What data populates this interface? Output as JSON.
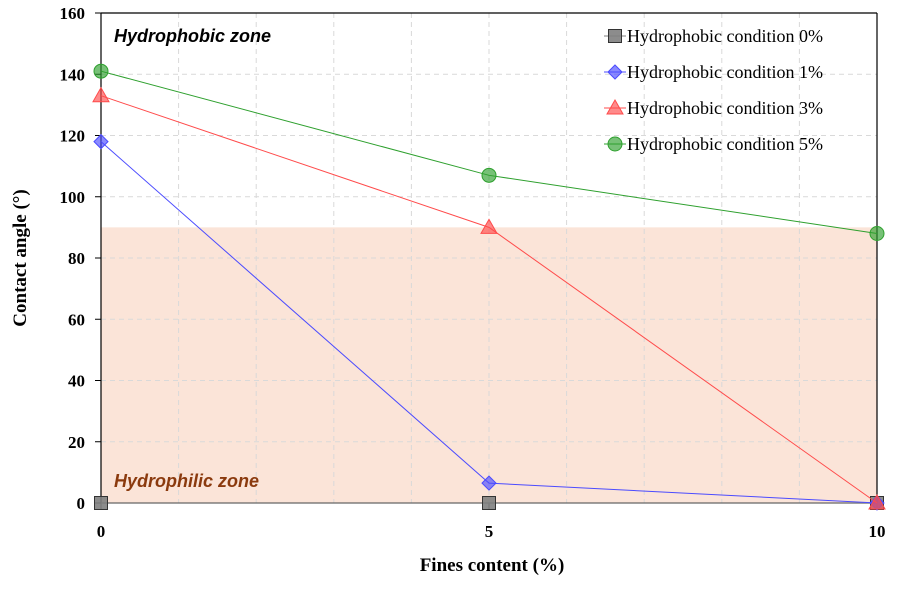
{
  "chart_data": {
    "type": "line",
    "xlabel": "Fines content (%)",
    "ylabel": "Contact angle (°)",
    "xlim": [
      0,
      10
    ],
    "ylim": [
      0,
      160
    ],
    "xticks": [
      0,
      5,
      10
    ],
    "yticks": [
      0,
      20,
      40,
      60,
      80,
      100,
      120,
      140,
      160
    ],
    "grid": true,
    "legend_position": "top-right",
    "x": [
      0,
      5,
      10
    ],
    "series": [
      {
        "name": "Hydrophobic condition 0%",
        "values": [
          0,
          0,
          0
        ],
        "color": "#7f7f7f",
        "marker": "square"
      },
      {
        "name": "Hydrophobic condition 1%",
        "values": [
          118,
          6.5,
          0
        ],
        "color": "#4b4bff",
        "marker": "diamond"
      },
      {
        "name": "Hydrophobic condition 3%",
        "values": [
          133,
          90,
          0
        ],
        "color": "#ff4b4b",
        "marker": "triangle"
      },
      {
        "name": "Hydrophobic condition 5%",
        "values": [
          141,
          107,
          88
        ],
        "color": "#2ea02e",
        "marker": "circle"
      }
    ],
    "annotations": [
      {
        "text": "Hydrophobic zone",
        "color": "#000000"
      },
      {
        "text": "Hydrophilic zone",
        "color": "#8b3a0e"
      }
    ],
    "shaded_region": {
      "y_from": 0,
      "y_to": 90,
      "color": "#fbe4d8"
    }
  }
}
